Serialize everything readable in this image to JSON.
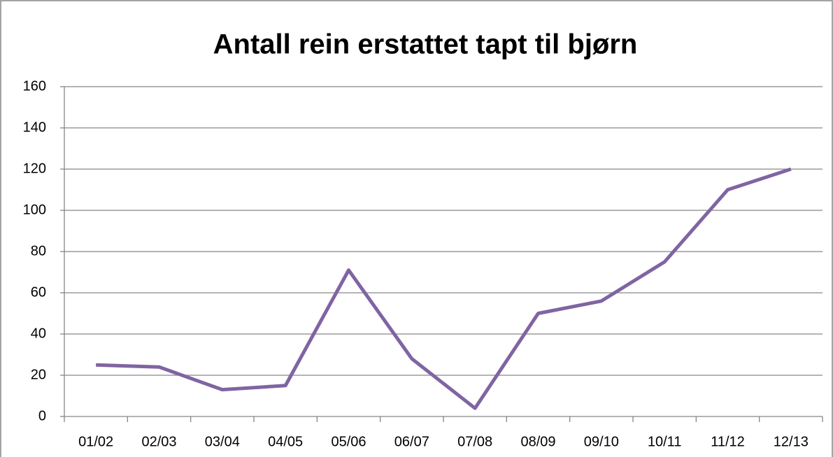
{
  "chart_data": {
    "type": "line",
    "title": "Antall rein erstattet tapt til bjørn",
    "categories": [
      "01/02",
      "02/03",
      "03/04",
      "04/05",
      "05/06",
      "06/07",
      "07/08",
      "08/09",
      "09/10",
      "10/11",
      "11/12",
      "12/13"
    ],
    "series": [
      {
        "name": "Antall rein",
        "color": "#8064a2",
        "values": [
          25,
          24,
          13,
          15,
          71,
          28,
          4,
          50,
          56,
          75,
          110,
          120
        ]
      }
    ],
    "ylim": [
      0,
      160
    ],
    "yticks": [
      0,
      20,
      40,
      60,
      80,
      100,
      120,
      140,
      160
    ],
    "grid": true
  }
}
